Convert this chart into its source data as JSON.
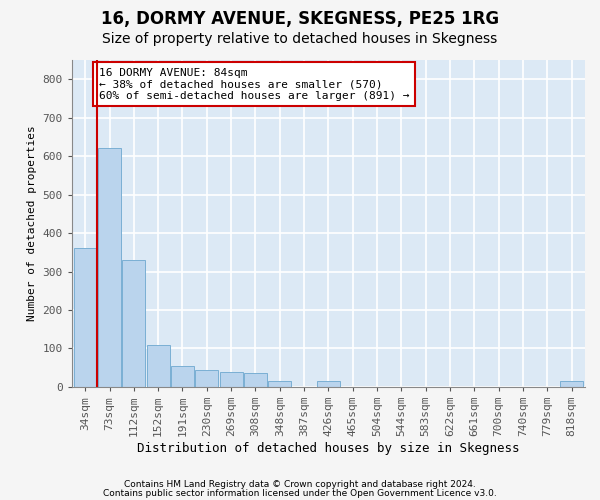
{
  "title1": "16, DORMY AVENUE, SKEGNESS, PE25 1RG",
  "title2": "Size of property relative to detached houses in Skegness",
  "xlabel": "Distribution of detached houses by size in Skegness",
  "ylabel": "Number of detached properties",
  "footer1": "Contains HM Land Registry data © Crown copyright and database right 2024.",
  "footer2": "Contains public sector information licensed under the Open Government Licence v3.0.",
  "categories": [
    "34sqm",
    "73sqm",
    "112sqm",
    "152sqm",
    "191sqm",
    "230sqm",
    "269sqm",
    "308sqm",
    "348sqm",
    "387sqm",
    "426sqm",
    "465sqm",
    "504sqm",
    "544sqm",
    "583sqm",
    "622sqm",
    "661sqm",
    "700sqm",
    "740sqm",
    "779sqm",
    "818sqm"
  ],
  "values": [
    360,
    620,
    330,
    110,
    55,
    45,
    40,
    35,
    15,
    0,
    15,
    0,
    0,
    0,
    0,
    0,
    0,
    0,
    0,
    0,
    15
  ],
  "bar_color": "#bad4ed",
  "bar_edge_color": "#7aafd4",
  "highlight_line_color": "#cc0000",
  "annotation_line1": "16 DORMY AVENUE: 84sqm",
  "annotation_line2": "← 38% of detached houses are smaller (570)",
  "annotation_line3": "60% of semi-detached houses are larger (891) →",
  "annotation_box_color": "#ffffff",
  "annotation_box_edge_color": "#cc0000",
  "ylim": [
    0,
    850
  ],
  "yticks": [
    0,
    100,
    200,
    300,
    400,
    500,
    600,
    700,
    800
  ],
  "plot_bg_color": "#dce9f5",
  "fig_bg_color": "#f5f5f5",
  "grid_color": "#ffffff",
  "title1_fontsize": 12,
  "title2_fontsize": 10,
  "xlabel_fontsize": 9,
  "ylabel_fontsize": 8,
  "tick_fontsize": 8,
  "annotation_fontsize": 8,
  "footer_fontsize": 6.5
}
